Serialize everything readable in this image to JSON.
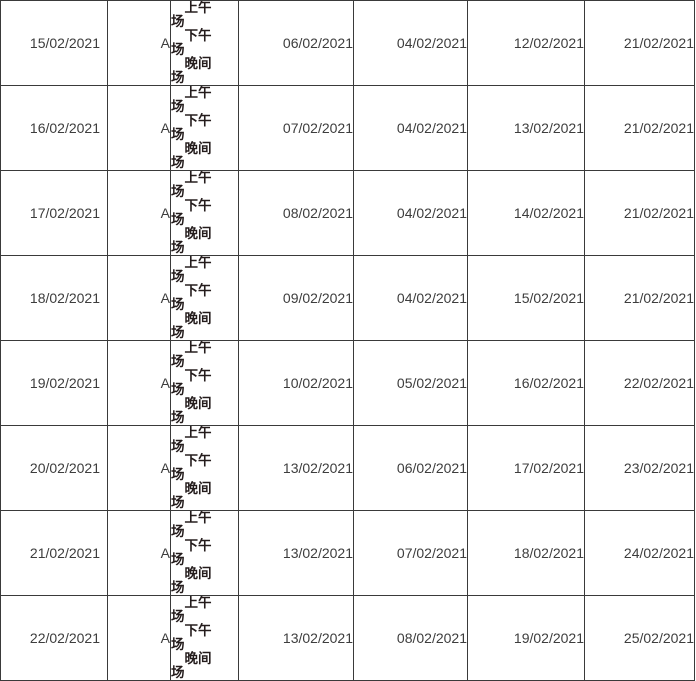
{
  "table": {
    "sessions": [
      "上午场",
      "下午场",
      "晚间场"
    ],
    "rows": [
      {
        "date": "15/02/2021",
        "group": "A",
        "d1": "06/02/2021",
        "d2": "04/02/2021",
        "d3": "12/02/2021",
        "d4": "21/02/2021"
      },
      {
        "date": "16/02/2021",
        "group": "A",
        "d1": "07/02/2021",
        "d2": "04/02/2021",
        "d3": "13/02/2021",
        "d4": "21/02/2021"
      },
      {
        "date": "17/02/2021",
        "group": "A",
        "d1": "08/02/2021",
        "d2": "04/02/2021",
        "d3": "14/02/2021",
        "d4": "21/02/2021"
      },
      {
        "date": "18/02/2021",
        "group": "A",
        "d1": "09/02/2021",
        "d2": "04/02/2021",
        "d3": "15/02/2021",
        "d4": "21/02/2021"
      },
      {
        "date": "19/02/2021",
        "group": "A",
        "d1": "10/02/2021",
        "d2": "05/02/2021",
        "d3": "16/02/2021",
        "d4": "22/02/2021"
      },
      {
        "date": "20/02/2021",
        "group": "A",
        "d1": "13/02/2021",
        "d2": "06/02/2021",
        "d3": "17/02/2021",
        "d4": "23/02/2021"
      },
      {
        "date": "21/02/2021",
        "group": "A",
        "d1": "13/02/2021",
        "d2": "07/02/2021",
        "d3": "18/02/2021",
        "d4": "24/02/2021"
      },
      {
        "date": "22/02/2021",
        "group": "A",
        "d1": "13/02/2021",
        "d2": "08/02/2021",
        "d3": "19/02/2021",
        "d4": "25/02/2021"
      }
    ]
  }
}
